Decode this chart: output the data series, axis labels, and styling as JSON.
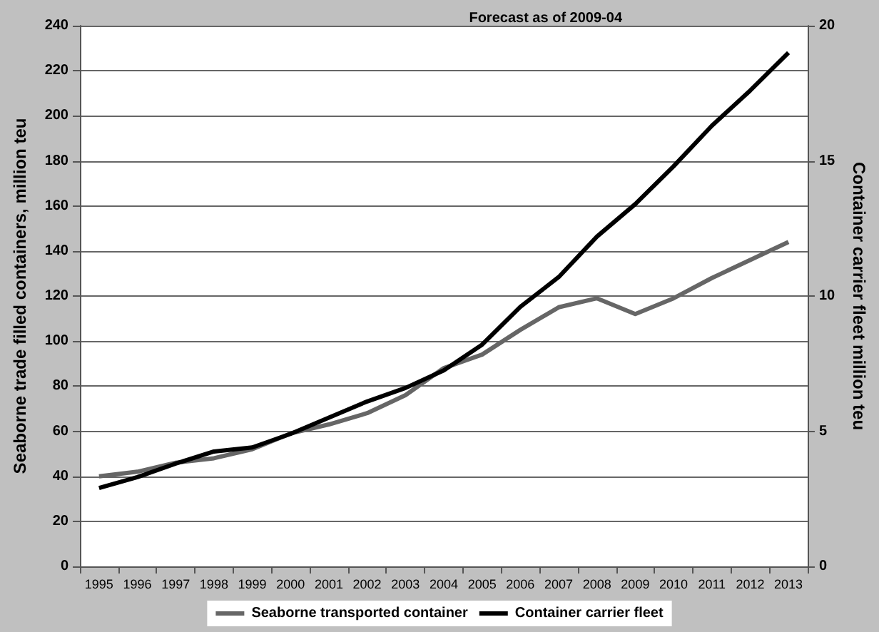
{
  "chart_data": {
    "type": "line",
    "categories": [
      "1995",
      "1996",
      "1997",
      "1998",
      "1999",
      "2000",
      "2001",
      "2002",
      "2003",
      "2004",
      "2005",
      "2006",
      "2007",
      "2008",
      "2009",
      "2010",
      "2011",
      "2012",
      "2013"
    ],
    "ylabel": "Seaborne trade filled containers, million teu",
    "y2label": "Container carrier fleet million teu",
    "series": [
      {
        "name": "Seaborne transported container",
        "color": "#666666",
        "values": [
          40,
          42,
          46,
          48,
          52,
          59,
          63,
          68,
          76,
          88,
          94,
          105,
          115,
          119,
          112,
          119,
          128,
          136,
          144
        ]
      },
      {
        "name": "Container carrier fleet",
        "color": "#000000",
        "axis": "y2",
        "values": [
          2.9,
          3.3,
          3.8,
          4.25,
          4.4,
          4.9,
          5.5,
          6.1,
          6.6,
          7.25,
          8.2,
          9.6,
          10.7,
          12.2,
          13.4,
          14.8,
          16.3,
          17.6,
          19.0
        ]
      }
    ],
    "ylim": [
      0,
      240
    ],
    "yticks": [
      0,
      20,
      40,
      60,
      80,
      100,
      120,
      140,
      160,
      180,
      200,
      220,
      240
    ],
    "y2lim": [
      0,
      20
    ],
    "y2ticks": [
      0,
      5,
      10,
      15,
      20
    ],
    "annotations": [
      "Forecast as of 2009-04"
    ],
    "grid": "y",
    "legend": "bottom",
    "marker": "none",
    "line_style": "solid"
  }
}
